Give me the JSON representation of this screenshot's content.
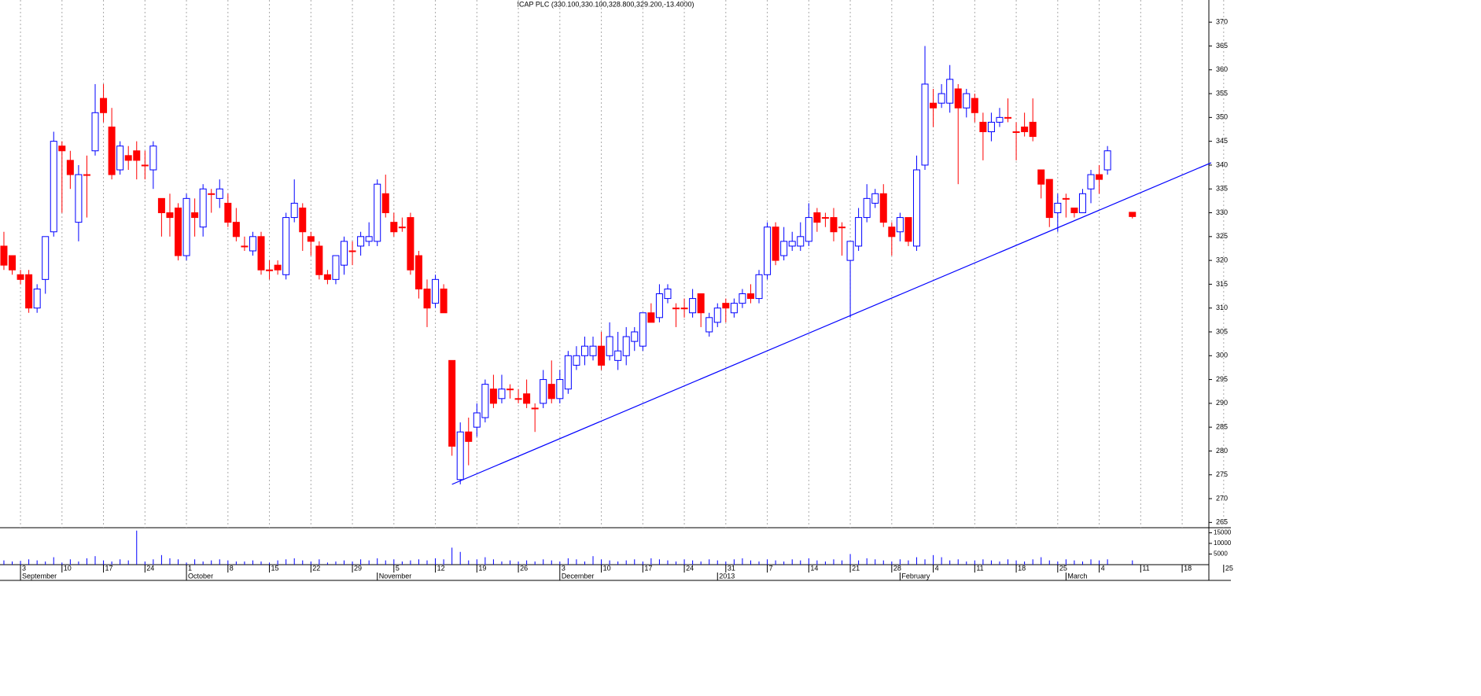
{
  "chart_data": {
    "type": "candlestick",
    "title": "ICAP PLC (330.100,330.100,328.800,329.200,-13.4000)",
    "up_color": "#0000ff",
    "down_color": "#ff0000",
    "open": [
      323,
      321,
      317,
      317,
      310,
      316,
      326,
      344,
      341,
      328,
      338,
      343,
      354,
      348,
      339,
      342,
      343,
      340,
      339,
      333,
      330,
      331,
      321,
      330,
      327,
      334,
      333,
      332,
      328,
      323,
      322,
      325,
      318,
      319,
      317,
      329,
      331,
      325,
      323,
      317,
      316,
      319,
      322,
      323,
      324,
      324,
      334,
      328,
      327,
      329,
      321,
      314,
      311,
      314,
      299,
      274,
      284,
      285,
      287,
      293,
      291,
      293,
      291,
      292,
      289,
      290,
      294,
      291,
      293,
      298,
      300,
      300,
      302,
      300,
      299,
      300,
      303,
      302,
      309,
      308,
      312,
      310,
      310,
      309,
      313,
      305,
      307,
      311,
      309,
      311,
      313,
      312,
      317,
      327,
      321,
      323,
      323,
      324,
      330,
      329,
      329,
      327,
      320,
      323,
      329,
      332,
      334,
      327,
      326,
      329,
      323,
      340,
      353,
      353,
      353,
      356,
      352,
      354,
      349,
      347,
      349,
      350,
      347,
      348,
      349,
      339,
      337,
      330,
      333,
      331,
      330,
      335,
      338,
      339,
      null,
      null,
      330.1
    ],
    "high": [
      326,
      321,
      318,
      318,
      315,
      325,
      347,
      345,
      343,
      340,
      342,
      357,
      357,
      352,
      345,
      344,
      345,
      343,
      345,
      333,
      334,
      332,
      334,
      333,
      336,
      335,
      337,
      334,
      331,
      325,
      326,
      326,
      320,
      320,
      330,
      337,
      332,
      326,
      324,
      318,
      321,
      325,
      324,
      326,
      328,
      337,
      338,
      330,
      329,
      330,
      322,
      316,
      317,
      315,
      299,
      286,
      287,
      290,
      295,
      296,
      296,
      294,
      293,
      295,
      290,
      297,
      299,
      297,
      301,
      302,
      304,
      304,
      305,
      307,
      305,
      306,
      306,
      309,
      311,
      315,
      315,
      311,
      312,
      314,
      313,
      309,
      311,
      312,
      312,
      314,
      315,
      318,
      328,
      328,
      327,
      326,
      328,
      332,
      331,
      330,
      331,
      328,
      324,
      331,
      336,
      335,
      336,
      328,
      330,
      329,
      342,
      365,
      356,
      357,
      361,
      357,
      356,
      355,
      351,
      351,
      352,
      354,
      349,
      351,
      354,
      339,
      337,
      334,
      334,
      331,
      335,
      339,
      340,
      344,
      null,
      null,
      330.1
    ],
    "low": [
      318,
      317,
      315,
      309,
      309,
      313,
      325,
      330,
      335,
      324,
      329,
      342,
      349,
      337,
      338,
      339,
      337,
      337,
      335,
      325,
      325,
      320,
      320,
      325,
      325,
      330,
      331,
      327,
      324,
      322,
      321,
      317,
      316,
      317,
      316,
      328,
      322,
      321,
      316,
      315,
      315,
      317,
      319,
      321,
      323,
      323,
      329,
      325,
      326,
      317,
      312,
      306,
      310,
      309,
      279,
      273,
      277,
      283,
      286,
      289,
      290,
      291,
      290,
      289,
      284,
      289,
      290,
      290,
      292,
      297,
      298,
      299,
      297,
      299,
      297,
      298,
      301,
      301,
      307,
      307,
      311,
      306,
      308,
      308,
      306,
      304,
      306,
      307,
      308,
      310,
      311,
      311,
      316,
      319,
      320,
      322,
      322,
      323,
      326,
      327,
      324,
      321,
      308,
      322,
      328,
      331,
      327,
      321,
      324,
      323,
      322,
      339,
      348,
      352,
      351,
      336,
      350,
      349,
      341,
      345,
      348,
      349,
      341,
      346,
      345,
      333,
      327,
      326,
      329,
      329,
      330,
      332,
      334,
      338,
      null,
      null,
      328.8
    ],
    "close": [
      319,
      318,
      316,
      310,
      314,
      325,
      345,
      343,
      338,
      338,
      338,
      351,
      351,
      338,
      344,
      341,
      341,
      340,
      344,
      330,
      329,
      321,
      333,
      329,
      335,
      334,
      335,
      328,
      325,
      323,
      325,
      318,
      318,
      318,
      329,
      332,
      326,
      324,
      317,
      316,
      321,
      324,
      322,
      325,
      325,
      336,
      330,
      326,
      327,
      318,
      314,
      310,
      316,
      309,
      281,
      284,
      282,
      288,
      294,
      290,
      293,
      293,
      291,
      290,
      289,
      295,
      291,
      295,
      300,
      300,
      302,
      302,
      298,
      304,
      301,
      304,
      305,
      309,
      307,
      313,
      314,
      310,
      310,
      312,
      309,
      308,
      310,
      310,
      311,
      313,
      312,
      317,
      327,
      320,
      324,
      324,
      325,
      329,
      328,
      329,
      326,
      327,
      324,
      329,
      333,
      334,
      328,
      325,
      329,
      324,
      339,
      357,
      352,
      355,
      358,
      352,
      355,
      351,
      347,
      349,
      350,
      350,
      347,
      347,
      346,
      336,
      329,
      332,
      333,
      330,
      334,
      338,
      337,
      343,
      null,
      null,
      329.2
    ],
    "volume": [
      2000,
      1500,
      1800,
      2500,
      2000,
      1500,
      3500,
      1000,
      2500,
      1500,
      3000,
      4000,
      2000,
      1500,
      2500,
      2000,
      16000,
      1500,
      2500,
      4500,
      3000,
      2500,
      1000,
      2500,
      1500,
      2000,
      2500,
      2000,
      1500,
      1500,
      2000,
      1500,
      1000,
      2000,
      2500,
      3000,
      2000,
      1500,
      2500,
      1000,
      1500,
      2000,
      1500,
      2500,
      2000,
      3000,
      2000,
      2500,
      1500,
      2000,
      2500,
      2000,
      3000,
      2500,
      8000,
      6000,
      2000,
      2500,
      3500,
      2500,
      1500,
      2000,
      1500,
      2000,
      1500,
      2500,
      2000,
      1500,
      3000,
      2500,
      1500,
      4000,
      2500,
      2000,
      1500,
      2000,
      2500,
      1500,
      3000,
      2500,
      2000,
      1500,
      2500,
      2000,
      1500,
      2500,
      2000,
      1500,
      2500,
      3000,
      2000,
      1500,
      2500,
      2000,
      1500,
      2500,
      2000,
      3000,
      2000,
      1500,
      2500,
      2000,
      5000,
      2000,
      3000,
      2500,
      2000,
      1500,
      2500,
      2000,
      3500,
      2500,
      4500,
      3500,
      2000,
      2500,
      1500,
      2000,
      2500,
      2000,
      1500,
      2500,
      2000,
      1500,
      2500,
      3500,
      2000,
      1500,
      2500,
      2000,
      1500,
      2500,
      2000,
      2500,
      null,
      null,
      2000
    ],
    "xlim": [
      -0.47,
      147.87
    ],
    "ylim": [
      263.9,
      373
    ],
    "yticks": [
      265,
      270,
      275,
      280,
      285,
      290,
      295,
      300,
      305,
      310,
      315,
      320,
      325,
      330,
      335,
      340,
      345,
      350,
      355,
      360,
      365,
      370
    ],
    "volume_ylim": [
      0,
      17000
    ],
    "volume_ticks": [
      5000,
      10000,
      15000
    ],
    "xticks": [
      {
        "value": 2,
        "label": "3"
      },
      {
        "value": 7,
        "label": "10"
      },
      {
        "value": 12,
        "label": "17"
      },
      {
        "value": 17,
        "label": "24"
      },
      {
        "value": 22,
        "label": "1"
      },
      {
        "value": 27,
        "label": "8"
      },
      {
        "value": 32,
        "label": "15"
      },
      {
        "value": 37,
        "label": "22"
      },
      {
        "value": 42,
        "label": "29"
      },
      {
        "value": 47,
        "label": "5"
      },
      {
        "value": 52,
        "label": "12"
      },
      {
        "value": 57,
        "label": "19"
      },
      {
        "value": 62,
        "label": "26"
      },
      {
        "value": 67,
        "label": "3"
      },
      {
        "value": 72,
        "label": "10"
      },
      {
        "value": 77,
        "label": "17"
      },
      {
        "value": 82,
        "label": "24"
      },
      {
        "value": 87,
        "label": "31"
      },
      {
        "value": 92,
        "label": "7"
      },
      {
        "value": 97,
        "label": "14"
      },
      {
        "value": 102,
        "label": "21"
      },
      {
        "value": 107,
        "label": "28"
      },
      {
        "value": 112,
        "label": "4"
      },
      {
        "value": 117,
        "label": "11"
      },
      {
        "value": 122,
        "label": "18"
      },
      {
        "value": 127,
        "label": "25"
      },
      {
        "value": 132,
        "label": "4"
      },
      {
        "value": 137,
        "label": "11"
      },
      {
        "value": 142,
        "label": "18"
      },
      {
        "value": 147,
        "label": "25"
      }
    ],
    "month_labels": [
      {
        "value": 2,
        "label": "September"
      },
      {
        "value": 22,
        "label": "October"
      },
      {
        "value": 45,
        "label": "November"
      },
      {
        "value": 67,
        "label": "December"
      },
      {
        "value": 86,
        "label": "2013"
      },
      {
        "value": 108,
        "label": "February"
      },
      {
        "value": 128,
        "label": "March"
      }
    ],
    "grid": true,
    "trendline": {
      "x": [
        54,
        145.5
      ],
      "y": [
        273,
        340.5
      ],
      "color": "#0000ff"
    }
  }
}
